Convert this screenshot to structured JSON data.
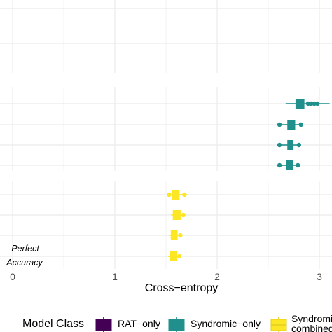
{
  "chart_data": {
    "type": "boxplot",
    "xlabel": "Cross−entropy",
    "xlim": [
      -0.1,
      3.1
    ],
    "xticks": [
      0,
      1,
      2,
      3
    ],
    "xtick_labels": [
      "0",
      "1",
      "2",
      "3"
    ],
    "grid": true,
    "annotation": [
      "Perfect",
      "Accuracy"
    ],
    "series": [
      {
        "name": "RAT−only",
        "color": "#440154",
        "boxes": []
      },
      {
        "name": "Syndromic−only",
        "color": "#21908C",
        "boxes": [
          {
            "q1": 2.77,
            "median": 2.81,
            "q3": 2.85,
            "whisker_low": 2.67,
            "whisker_high": 3.1,
            "outliers": [
              2.89,
              2.92,
              2.95,
              2.98
            ]
          },
          {
            "q1": 2.69,
            "median": 2.72,
            "q3": 2.76,
            "whisker_low": 2.6,
            "whisker_high": 2.8,
            "outliers": [
              2.61,
              2.82
            ]
          },
          {
            "q1": 2.69,
            "median": 2.71,
            "q3": 2.74,
            "whisker_low": 2.63,
            "whisker_high": 2.78,
            "outliers": [
              2.61,
              2.8
            ]
          },
          {
            "q1": 2.68,
            "median": 2.7,
            "q3": 2.74,
            "whisker_low": 2.62,
            "whisker_high": 2.77,
            "outliers": [
              2.61,
              2.79
            ]
          }
        ]
      },
      {
        "name": "Syndromic−\ncombined",
        "color": "#FDE725",
        "boxes": [
          {
            "q1": 1.56,
            "median": 1.59,
            "q3": 1.63,
            "whisker_low": 1.52,
            "whisker_high": 1.71,
            "outliers": [
              1.53,
              1.68
            ]
          },
          {
            "q1": 1.57,
            "median": 1.6,
            "q3": 1.64,
            "whisker_low": 1.55,
            "whisker_high": 1.69,
            "outliers": [
              1.67
            ]
          },
          {
            "q1": 1.55,
            "median": 1.58,
            "q3": 1.61,
            "whisker_low": 1.53,
            "whisker_high": 1.66,
            "outliers": [
              1.64
            ]
          },
          {
            "q1": 1.54,
            "median": 1.57,
            "q3": 1.6,
            "whisker_low": 1.52,
            "whisker_high": 1.64,
            "outliers": [
              1.63
            ]
          }
        ]
      }
    ],
    "legend": {
      "title": "Model Class",
      "placement": "bottom",
      "items": [
        {
          "label": "RAT−only",
          "color": "#440154"
        },
        {
          "label": "Syndromic−only",
          "color": "#21908C"
        },
        {
          "label_lines": [
            "Syndromi",
            "combined"
          ],
          "color": "#FDE725"
        }
      ]
    }
  }
}
